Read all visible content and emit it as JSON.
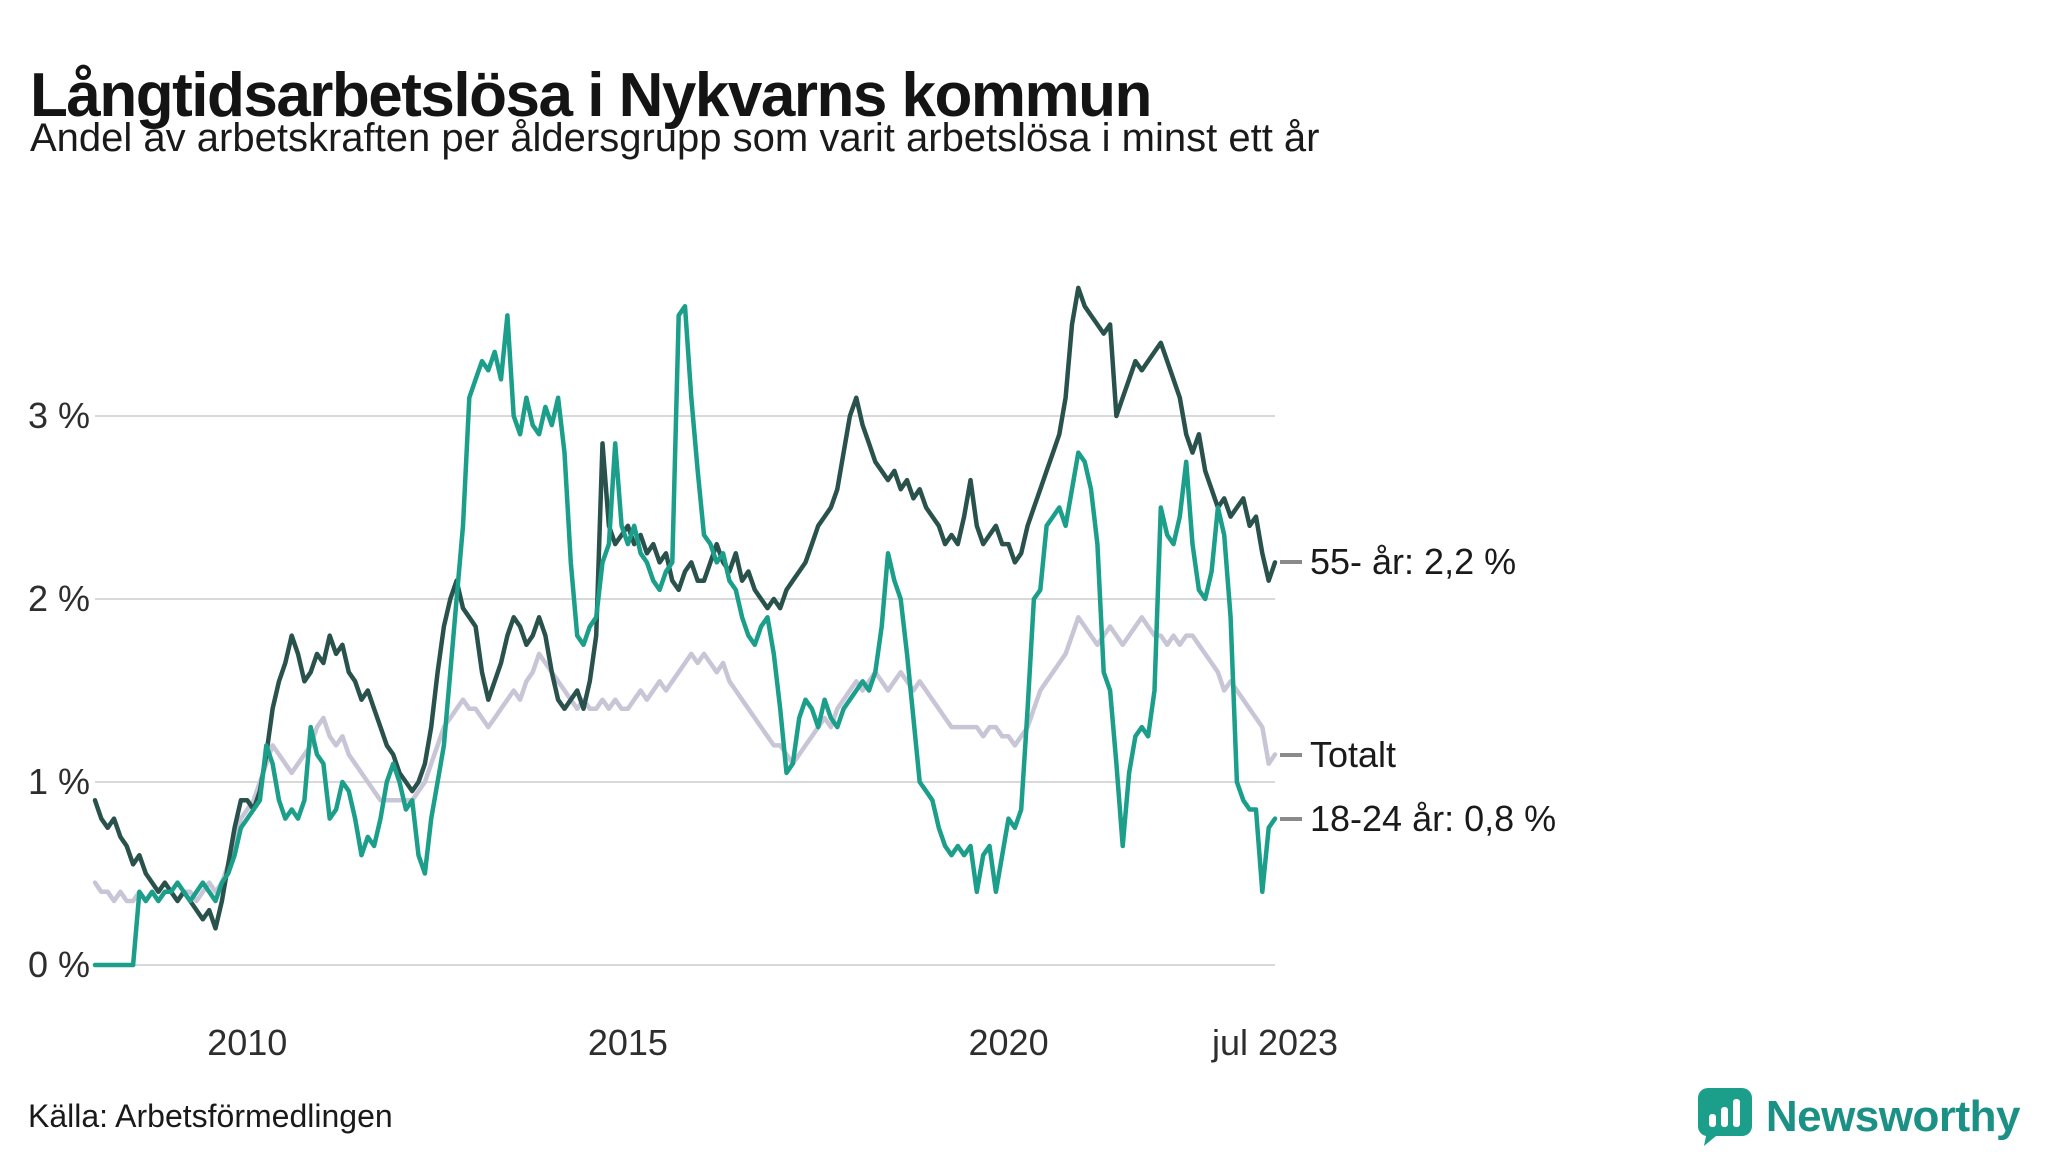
{
  "header": {
    "title": "Långtidsarbetslösa i Nykvarns kommun",
    "subtitle": "Andel av arbetskraften per åldersgrupp som varit arbetslösa i minst ett år"
  },
  "footer": {
    "source": "Källa: Arbetsförmedlingen",
    "brand": "Newsworthy"
  },
  "colors": {
    "brand_teal": "#1b9e8a",
    "series_55": "#2a524c",
    "series_total": "#c7c5d6",
    "series_18_24": "#1b9e8a",
    "gridline": "#d9d9d9"
  },
  "chart_data": {
    "type": "line",
    "title": "Långtidsarbetslösa i Nykvarns kommun",
    "subtitle": "Andel av arbetskraften per åldersgrupp som varit arbetslösa i minst ett år",
    "unit": "%",
    "frequency": "monthly",
    "x_start": "2008-01",
    "x_end": "2023-07",
    "ylim": [
      0,
      3.8
    ],
    "grid": "horizontal",
    "legend_position": "right-end-labels",
    "yticks": [
      {
        "value": 0,
        "label": "0 %"
      },
      {
        "value": 1,
        "label": "1 %"
      },
      {
        "value": 2,
        "label": "2 %"
      },
      {
        "value": 3,
        "label": "3 %"
      }
    ],
    "xticks": [
      {
        "index": 24,
        "label": "2010"
      },
      {
        "index": 84,
        "label": "2015"
      },
      {
        "index": 144,
        "label": "2020"
      },
      {
        "index": 186,
        "label": "jul 2023"
      }
    ],
    "series": [
      {
        "name": "55- år",
        "end_label": "55- år: 2,2 %",
        "last_value": 2.2,
        "color": "#2a524c",
        "values": [
          0.9,
          0.8,
          0.75,
          0.8,
          0.7,
          0.65,
          0.55,
          0.6,
          0.5,
          0.45,
          0.4,
          0.45,
          0.4,
          0.35,
          0.4,
          0.35,
          0.3,
          0.25,
          0.3,
          0.2,
          0.35,
          0.55,
          0.75,
          0.9,
          0.9,
          0.85,
          0.95,
          1.15,
          1.4,
          1.55,
          1.65,
          1.8,
          1.7,
          1.55,
          1.6,
          1.7,
          1.65,
          1.8,
          1.7,
          1.75,
          1.6,
          1.55,
          1.45,
          1.5,
          1.4,
          1.3,
          1.2,
          1.15,
          1.05,
          1.0,
          0.95,
          1.0,
          1.1,
          1.3,
          1.6,
          1.85,
          2.0,
          2.1,
          1.95,
          1.9,
          1.85,
          1.6,
          1.45,
          1.55,
          1.65,
          1.8,
          1.9,
          1.85,
          1.75,
          1.8,
          1.9,
          1.8,
          1.6,
          1.45,
          1.4,
          1.45,
          1.5,
          1.4,
          1.55,
          1.8,
          2.85,
          2.4,
          2.3,
          2.35,
          2.4,
          2.3,
          2.35,
          2.25,
          2.3,
          2.2,
          2.25,
          2.1,
          2.05,
          2.15,
          2.2,
          2.1,
          2.1,
          2.2,
          2.3,
          2.2,
          2.15,
          2.25,
          2.1,
          2.15,
          2.05,
          2.0,
          1.95,
          2.0,
          1.95,
          2.05,
          2.1,
          2.15,
          2.2,
          2.3,
          2.4,
          2.45,
          2.5,
          2.6,
          2.8,
          3.0,
          3.1,
          2.95,
          2.85,
          2.75,
          2.7,
          2.65,
          2.7,
          2.6,
          2.65,
          2.55,
          2.6,
          2.5,
          2.45,
          2.4,
          2.3,
          2.35,
          2.3,
          2.45,
          2.65,
          2.4,
          2.3,
          2.35,
          2.4,
          2.3,
          2.3,
          2.2,
          2.25,
          2.4,
          2.5,
          2.6,
          2.7,
          2.8,
          2.9,
          3.1,
          3.5,
          3.7,
          3.6,
          3.55,
          3.5,
          3.45,
          3.5,
          3.0,
          3.1,
          3.2,
          3.3,
          3.25,
          3.3,
          3.35,
          3.4,
          3.3,
          3.2,
          3.1,
          2.9,
          2.8,
          2.9,
          2.7,
          2.6,
          2.5,
          2.55,
          2.45,
          2.5,
          2.55,
          2.4,
          2.45,
          2.25,
          2.1,
          2.2
        ]
      },
      {
        "name": "Totalt",
        "end_label": "Totalt",
        "last_value": 1.15,
        "color": "#c7c5d6",
        "values": [
          0.45,
          0.4,
          0.4,
          0.35,
          0.4,
          0.35,
          0.35,
          0.4,
          0.35,
          0.4,
          0.35,
          0.4,
          0.4,
          0.35,
          0.4,
          0.4,
          0.35,
          0.4,
          0.45,
          0.4,
          0.45,
          0.55,
          0.7,
          0.8,
          0.85,
          0.9,
          1.0,
          1.1,
          1.2,
          1.15,
          1.1,
          1.05,
          1.1,
          1.15,
          1.2,
          1.3,
          1.35,
          1.25,
          1.2,
          1.25,
          1.15,
          1.1,
          1.05,
          1.0,
          0.95,
          0.9,
          0.9,
          0.9,
          0.9,
          0.9,
          0.9,
          0.95,
          1.0,
          1.1,
          1.2,
          1.3,
          1.35,
          1.4,
          1.45,
          1.4,
          1.4,
          1.35,
          1.3,
          1.35,
          1.4,
          1.45,
          1.5,
          1.45,
          1.55,
          1.6,
          1.7,
          1.65,
          1.6,
          1.55,
          1.5,
          1.45,
          1.4,
          1.45,
          1.4,
          1.4,
          1.45,
          1.4,
          1.45,
          1.4,
          1.4,
          1.45,
          1.5,
          1.45,
          1.5,
          1.55,
          1.5,
          1.55,
          1.6,
          1.65,
          1.7,
          1.65,
          1.7,
          1.65,
          1.6,
          1.65,
          1.55,
          1.5,
          1.45,
          1.4,
          1.35,
          1.3,
          1.25,
          1.2,
          1.2,
          1.15,
          1.1,
          1.15,
          1.2,
          1.25,
          1.3,
          1.35,
          1.3,
          1.4,
          1.45,
          1.5,
          1.55,
          1.5,
          1.55,
          1.6,
          1.55,
          1.5,
          1.55,
          1.6,
          1.55,
          1.5,
          1.55,
          1.5,
          1.45,
          1.4,
          1.35,
          1.3,
          1.3,
          1.3,
          1.3,
          1.3,
          1.25,
          1.3,
          1.3,
          1.25,
          1.25,
          1.2,
          1.25,
          1.3,
          1.4,
          1.5,
          1.55,
          1.6,
          1.65,
          1.7,
          1.8,
          1.9,
          1.85,
          1.8,
          1.75,
          1.8,
          1.85,
          1.8,
          1.75,
          1.8,
          1.85,
          1.9,
          1.85,
          1.8,
          1.8,
          1.75,
          1.8,
          1.75,
          1.8,
          1.8,
          1.75,
          1.7,
          1.65,
          1.6,
          1.5,
          1.55,
          1.5,
          1.45,
          1.4,
          1.35,
          1.3,
          1.1,
          1.15
        ]
      },
      {
        "name": "18-24 år",
        "end_label": "18-24 år: 0,8 %",
        "last_value": 0.8,
        "color": "#1b9e8a",
        "values": [
          0,
          0,
          0,
          0,
          0,
          0,
          0,
          0.4,
          0.35,
          0.4,
          0.35,
          0.4,
          0.4,
          0.45,
          0.4,
          0.35,
          0.4,
          0.45,
          0.4,
          0.35,
          0.45,
          0.5,
          0.6,
          0.75,
          0.8,
          0.85,
          0.9,
          1.2,
          1.1,
          0.9,
          0.8,
          0.85,
          0.8,
          0.9,
          1.3,
          1.15,
          1.1,
          0.8,
          0.85,
          1.0,
          0.95,
          0.8,
          0.6,
          0.7,
          0.65,
          0.8,
          1.0,
          1.1,
          1.0,
          0.85,
          0.9,
          0.6,
          0.5,
          0.8,
          1.0,
          1.2,
          1.6,
          2.0,
          2.4,
          3.1,
          3.2,
          3.3,
          3.25,
          3.35,
          3.2,
          3.55,
          3.0,
          2.9,
          3.1,
          2.95,
          2.9,
          3.05,
          2.95,
          3.1,
          2.8,
          2.2,
          1.8,
          1.75,
          1.85,
          1.9,
          2.2,
          2.3,
          2.85,
          2.4,
          2.3,
          2.4,
          2.25,
          2.2,
          2.1,
          2.05,
          2.15,
          2.2,
          3.55,
          3.6,
          3.1,
          2.7,
          2.35,
          2.3,
          2.2,
          2.25,
          2.1,
          2.05,
          1.9,
          1.8,
          1.75,
          1.85,
          1.9,
          1.7,
          1.4,
          1.05,
          1.1,
          1.35,
          1.45,
          1.4,
          1.3,
          1.45,
          1.35,
          1.3,
          1.4,
          1.45,
          1.5,
          1.55,
          1.5,
          1.6,
          1.85,
          2.25,
          2.1,
          2.0,
          1.7,
          1.35,
          1.0,
          0.95,
          0.9,
          0.75,
          0.65,
          0.6,
          0.65,
          0.6,
          0.65,
          0.4,
          0.6,
          0.65,
          0.4,
          0.6,
          0.8,
          0.75,
          0.85,
          1.4,
          2.0,
          2.05,
          2.4,
          2.45,
          2.5,
          2.4,
          2.6,
          2.8,
          2.75,
          2.6,
          2.3,
          1.6,
          1.5,
          1.1,
          0.65,
          1.05,
          1.25,
          1.3,
          1.25,
          1.5,
          2.5,
          2.35,
          2.3,
          2.45,
          2.75,
          2.3,
          2.05,
          2.0,
          2.15,
          2.5,
          2.35,
          1.9,
          1.0,
          0.9,
          0.85,
          0.85,
          0.4,
          0.75,
          0.8
        ]
      }
    ]
  }
}
